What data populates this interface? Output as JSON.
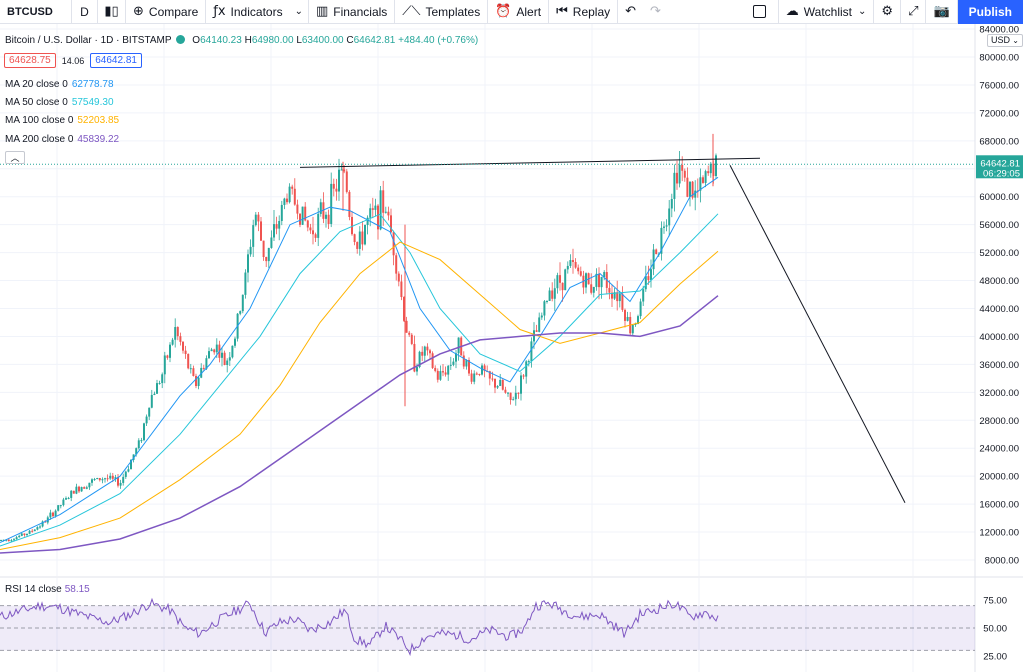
{
  "toolbar": {
    "symbol": "BTCUSD",
    "interval": "D",
    "compare": "Compare",
    "indicators": "Indicators",
    "financials": "Financials",
    "templates": "Templates",
    "alert": "Alert",
    "replay": "Replay",
    "watchlist": "Watchlist",
    "publish": "Publish"
  },
  "legend": {
    "title": "Bitcoin / U.S. Dollar · 1D · BITSTAMP",
    "open_label": "O",
    "open": "64140.23",
    "high_label": "H",
    "high": "64980.00",
    "low_label": "L",
    "low": "63400.00",
    "close_label": "C",
    "close": "64642.81",
    "change": "+484.40 (+0.76%)",
    "bid": "64628.75",
    "spread": "14.06",
    "ask": "64642.81",
    "ma": [
      {
        "label": "MA 20 close 0",
        "value": "62778.78",
        "color": "#2196f3"
      },
      {
        "label": "MA 50 close 0",
        "value": "57549.30",
        "color": "#26c6da"
      },
      {
        "label": "MA 100 close 0",
        "value": "52203.85",
        "color": "#ffb300"
      },
      {
        "label": "MA 200 close 0",
        "value": "45839.22",
        "color": "#7e57c2"
      }
    ]
  },
  "currency": "USD",
  "current_price": {
    "value": "64642.81",
    "countdown": "06:29:05",
    "color": "#26a69a"
  },
  "rsi_legend": {
    "label": "RSI 14 close",
    "value": "58.15"
  },
  "colors": {
    "up": "#26a69a",
    "down": "#ef5350",
    "rsi": "#7e57c2",
    "drawing": "#131722"
  },
  "chart_data": {
    "type": "candlestick",
    "price_axis": {
      "ticks": [
        84000,
        80000,
        76000,
        72000,
        68000,
        64000,
        60000,
        56000,
        52000,
        48000,
        44000,
        40000,
        36000,
        32000,
        28000,
        24000,
        20000,
        16000,
        12000,
        8000
      ],
      "ylim": [
        8000,
        84000
      ]
    },
    "close_path": [
      [
        0,
        10800
      ],
      [
        15,
        11200
      ],
      [
        30,
        12000
      ],
      [
        45,
        13500
      ],
      [
        60,
        15800
      ],
      [
        75,
        18000
      ],
      [
        90,
        19200
      ],
      [
        105,
        19800
      ],
      [
        120,
        19000
      ],
      [
        130,
        22000
      ],
      [
        140,
        25000
      ],
      [
        150,
        31000
      ],
      [
        162,
        34500
      ],
      [
        175,
        41000
      ],
      [
        185,
        37000
      ],
      [
        195,
        33000
      ],
      [
        205,
        36500
      ],
      [
        215,
        39000
      ],
      [
        225,
        36000
      ],
      [
        235,
        40000
      ],
      [
        245,
        48000
      ],
      [
        255,
        58000
      ],
      [
        265,
        51000
      ],
      [
        275,
        55000
      ],
      [
        288,
        61000
      ],
      [
        300,
        58000
      ],
      [
        310,
        55000
      ],
      [
        320,
        57000
      ],
      [
        330,
        59000
      ],
      [
        340,
        63000
      ],
      [
        345,
        64000
      ],
      [
        350,
        57000
      ],
      [
        358,
        52000
      ],
      [
        365,
        56000
      ],
      [
        375,
        57500
      ],
      [
        385,
        59000
      ],
      [
        395,
        52000
      ],
      [
        405,
        42000
      ],
      [
        415,
        36000
      ],
      [
        425,
        38000
      ],
      [
        438,
        34000
      ],
      [
        450,
        36000
      ],
      [
        460,
        39000
      ],
      [
        470,
        34000
      ],
      [
        480,
        35500
      ],
      [
        490,
        33500
      ],
      [
        500,
        33000
      ],
      [
        510,
        30500
      ],
      [
        520,
        33000
      ],
      [
        530,
        38000
      ],
      [
        540,
        42000
      ],
      [
        550,
        47000
      ],
      [
        560,
        48000
      ],
      [
        570,
        50000
      ],
      [
        580,
        49000
      ],
      [
        590,
        47000
      ],
      [
        600,
        49000
      ],
      [
        610,
        47000
      ],
      [
        620,
        46000
      ],
      [
        630,
        41000
      ],
      [
        640,
        44000
      ],
      [
        650,
        50000
      ],
      [
        660,
        54000
      ],
      [
        670,
        60000
      ],
      [
        678,
        65000
      ],
      [
        685,
        62000
      ],
      [
        695,
        60000
      ],
      [
        705,
        62000
      ],
      [
        712,
        64500
      ],
      [
        718,
        64642
      ]
    ],
    "moving_averages": [
      {
        "name": "MA 20",
        "points": [
          [
            0,
            10500
          ],
          [
            60,
            14500
          ],
          [
            120,
            20000
          ],
          [
            180,
            31500
          ],
          [
            210,
            36000
          ],
          [
            250,
            44000
          ],
          [
            290,
            56000
          ],
          [
            330,
            58500
          ],
          [
            350,
            58000
          ],
          [
            390,
            55000
          ],
          [
            420,
            44000
          ],
          [
            450,
            38000
          ],
          [
            480,
            35500
          ],
          [
            510,
            33500
          ],
          [
            540,
            40000
          ],
          [
            570,
            47000
          ],
          [
            600,
            49000
          ],
          [
            630,
            45000
          ],
          [
            660,
            52000
          ],
          [
            690,
            60000
          ],
          [
            718,
            62779
          ]
        ]
      },
      {
        "name": "MA 50",
        "points": [
          [
            0,
            10000
          ],
          [
            60,
            13000
          ],
          [
            120,
            17500
          ],
          [
            180,
            26000
          ],
          [
            220,
            33000
          ],
          [
            260,
            40000
          ],
          [
            300,
            49000
          ],
          [
            340,
            55000
          ],
          [
            380,
            57500
          ],
          [
            410,
            52000
          ],
          [
            440,
            44000
          ],
          [
            480,
            37500
          ],
          [
            520,
            35000
          ],
          [
            560,
            40000
          ],
          [
            600,
            46000
          ],
          [
            640,
            46500
          ],
          [
            680,
            52000
          ],
          [
            718,
            57549
          ]
        ]
      },
      {
        "name": "MA 100",
        "points": [
          [
            0,
            9500
          ],
          [
            60,
            11200
          ],
          [
            120,
            14000
          ],
          [
            180,
            19500
          ],
          [
            240,
            26000
          ],
          [
            280,
            33000
          ],
          [
            320,
            42000
          ],
          [
            360,
            49000
          ],
          [
            400,
            53500
          ],
          [
            440,
            51000
          ],
          [
            480,
            46000
          ],
          [
            520,
            41000
          ],
          [
            560,
            39000
          ],
          [
            600,
            40500
          ],
          [
            640,
            42000
          ],
          [
            680,
            47500
          ],
          [
            718,
            52204
          ]
        ]
      },
      {
        "name": "MA 200",
        "points": [
          [
            0,
            9000
          ],
          [
            60,
            9500
          ],
          [
            120,
            11000
          ],
          [
            180,
            14000
          ],
          [
            240,
            18500
          ],
          [
            300,
            24500
          ],
          [
            360,
            30500
          ],
          [
            400,
            34500
          ],
          [
            440,
            37500
          ],
          [
            480,
            39500
          ],
          [
            520,
            40000
          ],
          [
            560,
            40500
          ],
          [
            600,
            40500
          ],
          [
            640,
            40000
          ],
          [
            680,
            41500
          ],
          [
            718,
            45839
          ]
        ]
      }
    ],
    "trendline": [
      [
        300,
        64200
      ],
      [
        760,
        65500
      ]
    ],
    "projection_line": [
      [
        730,
        64500
      ],
      [
        905,
        16200
      ]
    ],
    "rsi": {
      "axis_ticks": [
        75.0,
        50.0,
        25.0
      ],
      "bands": [
        30,
        70
      ],
      "series": [
        [
          0,
          60
        ],
        [
          20,
          65
        ],
        [
          40,
          70
        ],
        [
          60,
          68
        ],
        [
          80,
          62
        ],
        [
          95,
          58
        ],
        [
          110,
          55
        ],
        [
          130,
          62
        ],
        [
          150,
          72
        ],
        [
          170,
          66
        ],
        [
          185,
          50
        ],
        [
          200,
          45
        ],
        [
          215,
          55
        ],
        [
          235,
          65
        ],
        [
          250,
          72
        ],
        [
          265,
          46
        ],
        [
          280,
          55
        ],
        [
          295,
          58
        ],
        [
          310,
          48
        ],
        [
          330,
          55
        ],
        [
          345,
          66
        ],
        [
          355,
          40
        ],
        [
          370,
          35
        ],
        [
          385,
          52
        ],
        [
          400,
          40
        ],
        [
          410,
          30
        ],
        [
          425,
          42
        ],
        [
          440,
          45
        ],
        [
          455,
          44
        ],
        [
          470,
          40
        ],
        [
          490,
          48
        ],
        [
          510,
          42
        ],
        [
          525,
          50
        ],
        [
          535,
          70
        ],
        [
          550,
          72
        ],
        [
          565,
          65
        ],
        [
          580,
          60
        ],
        [
          600,
          62
        ],
        [
          610,
          55
        ],
        [
          625,
          45
        ],
        [
          640,
          62
        ],
        [
          660,
          68
        ],
        [
          675,
          72
        ],
        [
          690,
          60
        ],
        [
          705,
          64
        ],
        [
          718,
          58
        ]
      ]
    }
  }
}
